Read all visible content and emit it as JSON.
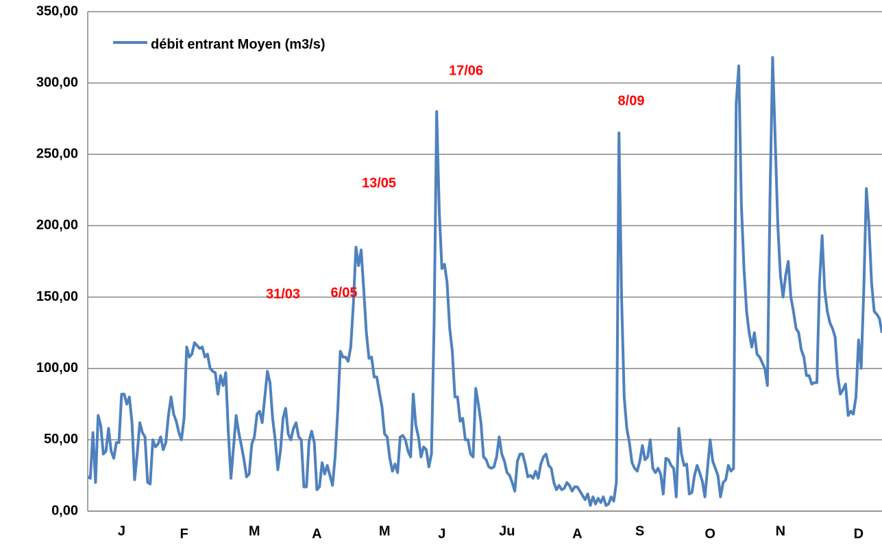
{
  "chart_data": {
    "type": "line",
    "categories": [
      null,
      null,
      null,
      null,
      null,
      null,
      null,
      null,
      null,
      null,
      null,
      null,
      null,
      "J",
      null,
      null,
      null,
      null,
      null,
      null,
      null,
      null,
      null,
      null,
      null,
      null,
      null,
      null,
      null,
      null,
      null,
      null,
      null,
      null,
      null,
      null,
      null,
      "F",
      null,
      null,
      null,
      null,
      null,
      null,
      null,
      null,
      null,
      null,
      null,
      null,
      null,
      null,
      null,
      null,
      null,
      null,
      null,
      null,
      null,
      null,
      null,
      null,
      null,
      null,
      "M",
      null,
      null,
      null,
      null,
      null,
      null,
      null,
      null,
      null,
      null,
      null,
      null,
      null,
      null,
      null,
      null,
      null,
      null,
      null,
      null,
      null,
      null,
      null,
      "A",
      null,
      null,
      null,
      null,
      null,
      null,
      null,
      null,
      null,
      null,
      null,
      null,
      null,
      null,
      null,
      null,
      null,
      null,
      null,
      null,
      null,
      null,
      null,
      null,
      null,
      "M",
      null,
      null,
      null,
      null,
      null,
      null,
      null,
      null,
      null,
      null,
      null,
      null,
      null,
      null,
      null,
      null,
      null,
      null,
      null,
      null,
      null,
      "J",
      null,
      null,
      null,
      null,
      null,
      null,
      null,
      null,
      null,
      null,
      null,
      null,
      null,
      null,
      null,
      null,
      null,
      null,
      null,
      null,
      null,
      null,
      null,
      null,
      "Ju",
      null,
      null,
      null,
      null,
      null,
      null,
      null,
      null,
      null,
      null,
      null,
      null,
      null,
      null,
      null,
      null,
      null,
      null,
      null,
      null,
      null,
      null,
      null,
      null,
      null,
      null,
      "A",
      null,
      null,
      null,
      null,
      null,
      null,
      null,
      null,
      null,
      null,
      null,
      null,
      null,
      null,
      null,
      null,
      null,
      null,
      null,
      null,
      null,
      null,
      null,
      "S",
      null,
      null,
      null,
      null,
      null,
      null,
      null,
      null,
      null,
      null,
      null,
      null,
      null,
      null,
      null,
      null,
      null,
      null,
      null,
      null,
      null,
      null,
      null,
      null,
      null,
      null,
      "O",
      null,
      null,
      null,
      null,
      null,
      null,
      null,
      null,
      null,
      null,
      null,
      null,
      null,
      null,
      null,
      null,
      null,
      null,
      null,
      null,
      null,
      null,
      null,
      null,
      null,
      null,
      "N",
      null,
      null,
      null,
      null,
      null,
      null,
      null,
      null,
      null,
      null,
      null,
      null,
      null,
      null,
      null,
      null,
      null,
      null,
      null,
      null,
      null,
      null,
      null,
      null,
      null,
      null,
      null,
      null,
      null,
      "D",
      null,
      null,
      null,
      null,
      null,
      null,
      null,
      null,
      null
    ],
    "series": [
      {
        "name": "débit entrant Moyen (m3/s)",
        "color": "#4f81bd",
        "values": [
          24,
          23,
          55,
          20,
          67,
          60,
          40,
          42,
          58,
          42,
          37,
          48,
          48,
          82,
          82,
          75,
          80,
          62,
          22,
          40,
          62,
          55,
          52,
          20,
          19,
          50,
          45,
          47,
          52,
          43,
          48,
          67,
          80,
          68,
          63,
          55,
          50,
          65,
          115,
          108,
          110,
          118,
          116,
          114,
          115,
          108,
          110,
          100,
          98,
          97,
          82,
          95,
          88,
          97,
          55,
          23,
          45,
          67,
          55,
          46,
          36,
          24,
          26,
          47,
          52,
          68,
          70,
          62,
          80,
          98,
          90,
          65,
          50,
          29,
          42,
          65,
          72,
          54,
          50,
          58,
          62,
          52,
          50,
          17,
          17,
          49,
          56,
          48,
          15,
          17,
          34,
          26,
          32,
          25,
          18,
          38,
          70,
          112,
          108,
          108,
          105,
          115,
          145,
          185,
          172,
          183,
          155,
          125,
          107,
          108,
          94,
          94,
          83,
          73,
          54,
          52,
          37,
          28,
          33,
          27,
          52,
          53,
          50,
          42,
          38,
          82,
          60,
          52,
          38,
          45,
          43,
          31,
          40,
          130,
          280,
          210,
          170,
          173,
          160,
          128,
          112,
          80,
          80,
          63,
          65,
          50,
          50,
          40,
          38,
          86,
          75,
          62,
          38,
          36,
          31,
          30,
          31,
          38,
          52,
          40,
          35,
          27,
          25,
          20,
          14,
          35,
          40,
          40,
          33,
          24,
          25,
          23,
          28,
          23,
          33,
          38,
          40,
          32,
          30,
          20,
          15,
          18,
          15,
          16,
          20,
          18,
          14,
          17,
          17,
          14,
          11,
          8,
          12,
          4,
          10,
          5,
          9,
          6,
          10,
          4,
          5,
          10,
          7,
          20,
          265,
          150,
          80,
          58,
          48,
          34,
          30,
          28,
          35,
          46,
          36,
          38,
          50,
          30,
          27,
          30,
          26,
          12,
          37,
          36,
          32,
          30,
          10,
          58,
          40,
          32,
          33,
          12,
          13,
          25,
          32,
          27,
          21,
          10,
          30,
          50,
          35,
          30,
          25,
          10,
          20,
          22,
          32,
          28,
          30,
          285,
          312,
          215,
          170,
          140,
          125,
          115,
          125,
          110,
          108,
          104,
          100,
          88,
          220,
          318,
          260,
          200,
          165,
          150,
          165,
          175,
          150,
          140,
          128,
          125,
          113,
          108,
          95,
          95,
          89,
          90,
          90,
          160,
          193,
          155,
          140,
          132,
          128,
          122,
          95,
          82,
          85,
          89,
          67,
          70,
          68,
          80,
          120,
          100,
          155,
          226,
          200,
          160,
          140,
          138,
          135,
          125
        ]
      }
    ],
    "annotations": [
      "31/03",
      "6/05",
      "13/05",
      "17/06",
      "8/09"
    ],
    "annotation_color": "#ff0000",
    "ylim": [
      0,
      350
    ],
    "yticks": [
      {
        "value": 0,
        "label": "0,00"
      },
      {
        "value": 50,
        "label": "50,00"
      },
      {
        "value": 100,
        "label": "100,00"
      },
      {
        "value": 150,
        "label": "150,00"
      },
      {
        "value": 200,
        "label": "200,00"
      },
      {
        "value": 250,
        "label": "250,00"
      },
      {
        "value": 300,
        "label": "300,00"
      },
      {
        "value": 350,
        "label": "350,00"
      }
    ],
    "grid": true
  }
}
